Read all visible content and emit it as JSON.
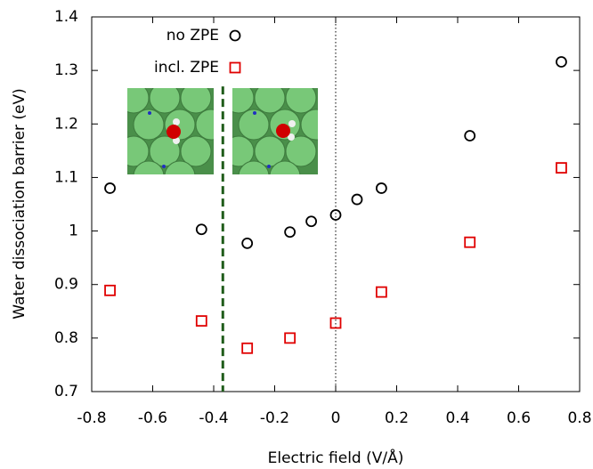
{
  "chart_data": {
    "type": "scatter",
    "xlabel": "Electric field (V/Å)",
    "ylabel": "Water dissociation barrier (eV)",
    "xlim": [
      -0.8,
      0.8
    ],
    "ylim": [
      0.7,
      1.4
    ],
    "xticks": [
      -0.8,
      -0.6,
      -0.4,
      -0.2,
      0,
      0.2,
      0.4,
      0.6,
      0.8
    ],
    "yticks": [
      0.7,
      0.8,
      0.9,
      1,
      1.1,
      1.2,
      1.3,
      1.4
    ],
    "series": [
      {
        "name": "no ZPE",
        "color": "#000000",
        "marker": "circle",
        "x": [
          -0.74,
          -0.44,
          -0.29,
          -0.15,
          -0.08,
          0,
          0.07,
          0.15,
          0.44,
          0.74
        ],
        "values": [
          1.08,
          1.003,
          0.977,
          0.998,
          1.018,
          1.03,
          1.059,
          1.08,
          1.178,
          1.316
        ]
      },
      {
        "name": "incl. ZPE",
        "color": "#e00000",
        "marker": "square",
        "x": [
          -0.74,
          -0.44,
          -0.29,
          -0.15,
          0,
          0.15,
          0.44,
          0.74
        ],
        "values": [
          0.889,
          0.832,
          0.781,
          0.8,
          0.828,
          0.886,
          0.979,
          1.118
        ]
      }
    ],
    "vlines": [
      {
        "x": -0.37,
        "color": "#1f5c1a",
        "style": "dashed",
        "ymax": 1.27
      },
      {
        "x": 0,
        "color": "#000000",
        "style": "dotted"
      }
    ]
  }
}
